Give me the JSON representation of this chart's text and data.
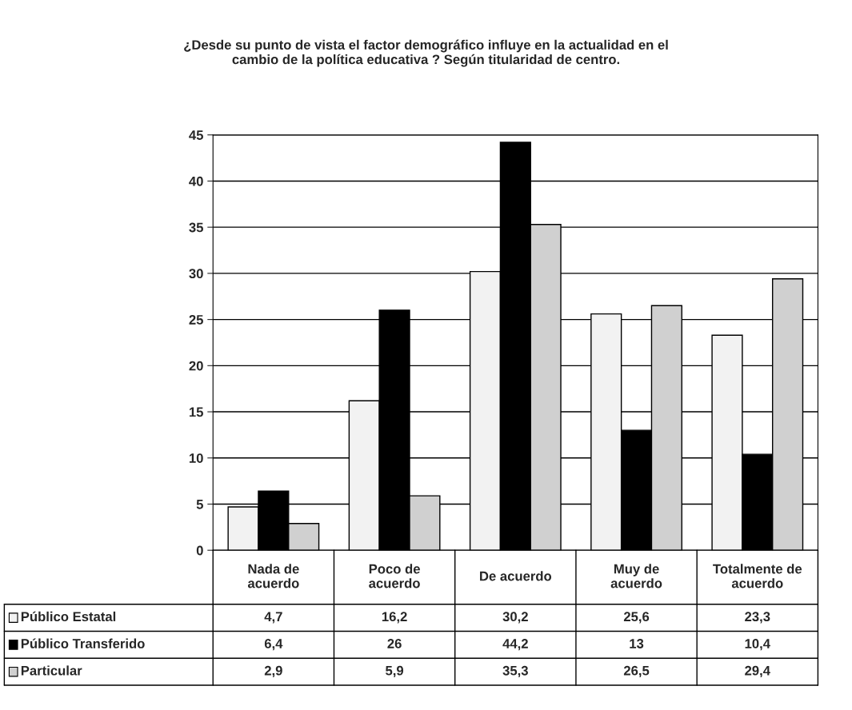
{
  "chart_data": {
    "type": "bar",
    "title": "¿Desde su punto de vista el factor demográfico influye en la actualidad en el\ncambio de la política educativa ? Según titularidad de centro.",
    "categories": [
      "Nada de\nacuerdo",
      "Poco de\nacuerdo",
      "De acuerdo",
      "Muy de\nacuerdo",
      "Totalmente de\nacuerdo"
    ],
    "series": [
      {
        "name": "Público Estatal",
        "color": "#f2f2f2",
        "values": [
          4.7,
          16.2,
          30.2,
          25.6,
          23.3
        ],
        "value_labels": [
          "4,7",
          "16,2",
          "30,2",
          "25,6",
          "23,3"
        ]
      },
      {
        "name": "Público Transferido",
        "color": "#000000",
        "values": [
          6.4,
          26,
          44.2,
          13,
          10.4
        ],
        "value_labels": [
          "6,4",
          "26",
          "44,2",
          "13",
          "10,4"
        ]
      },
      {
        "name": "Particular",
        "color": "#d0d0d0",
        "values": [
          2.9,
          5.9,
          35.3,
          26.5,
          29.4
        ],
        "value_labels": [
          "2,9",
          "5,9",
          "35,3",
          "26,5",
          "29,4"
        ]
      }
    ],
    "ylim": [
      0,
      45
    ],
    "yticks": [
      0,
      5,
      10,
      15,
      20,
      25,
      30,
      35,
      40,
      45
    ],
    "grid": "y",
    "legend": "bottom left"
  }
}
